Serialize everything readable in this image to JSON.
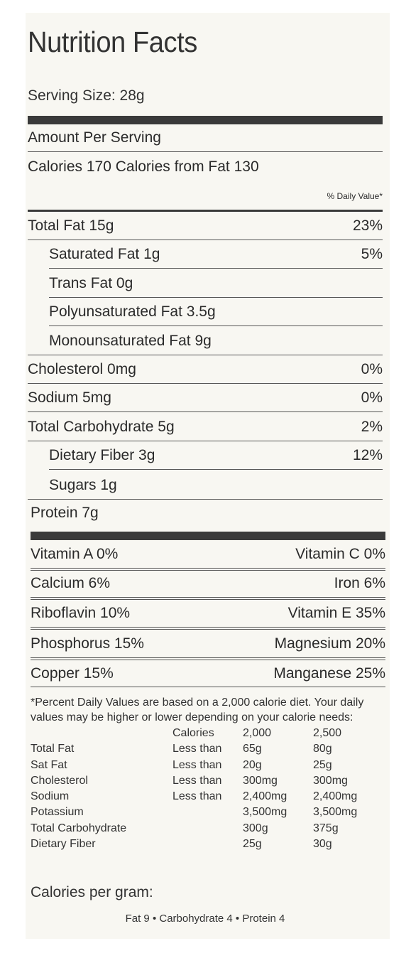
{
  "title": "Nutrition Facts",
  "serving_size": "Serving Size: 28g",
  "amount_per_serving": "Amount Per Serving",
  "calories_line": "Calories 170 Calories from Fat 130",
  "daily_value_header": "% Daily Value*",
  "nutrients": [
    {
      "label": "Total Fat 15g",
      "dv": "23%"
    },
    {
      "label": "Saturated Fat 1g",
      "dv": "5%"
    },
    {
      "label": "Trans Fat 0g",
      "dv": ""
    },
    {
      "label": "Polyunsaturated Fat 3.5g",
      "dv": ""
    },
    {
      "label": "Monounsaturated Fat 9g",
      "dv": ""
    },
    {
      "label": "Cholesterol 0mg",
      "dv": "0%"
    },
    {
      "label": "Sodium 5mg",
      "dv": "0%"
    },
    {
      "label": "Total Carbohydrate 5g",
      "dv": "2%"
    },
    {
      "label": "Dietary Fiber 3g",
      "dv": "12%"
    },
    {
      "label": "Sugars 1g",
      "dv": ""
    },
    {
      "label": "Protein 7g",
      "dv": ""
    }
  ],
  "vitamins": [
    {
      "left": "Vitamin A 0%",
      "right": "Vitamin C 0%"
    },
    {
      "left": "Calcium 6%",
      "right": "Iron 6%"
    },
    {
      "left": "Riboflavin 10%",
      "right": "Vitamin E 35%"
    },
    {
      "left": "Phosphorus 15%",
      "right": "Magnesium 20%"
    },
    {
      "left": "Copper 15%",
      "right": "Manganese 25%"
    }
  ],
  "footnote": "*Percent Daily Values are based on a 2,000 calorie diet. Your daily values may be higher or lower depending on your calorie needs:",
  "daily_table": [
    [
      "",
      "Calories",
      "2,000",
      "2,500"
    ],
    [
      "Total Fat",
      "Less than",
      "65g",
      "80g"
    ],
    [
      "Sat Fat",
      "Less than",
      "20g",
      "25g"
    ],
    [
      "Cholesterol",
      "Less than",
      "300mg",
      "300mg"
    ],
    [
      "Sodium",
      "Less than",
      "2,400mg",
      "2,400mg"
    ],
    [
      "Potassium",
      "",
      "3,500mg",
      "3,500mg"
    ],
    [
      "Total Carbohydrate",
      "",
      "300g",
      "375g"
    ],
    [
      "Dietary Fiber",
      "",
      "25g",
      "30g"
    ]
  ],
  "calories_per_gram_label": "Calories per gram:",
  "calories_per_gram": "Fat 9 • Carbohydrate 4 • Protein 4"
}
